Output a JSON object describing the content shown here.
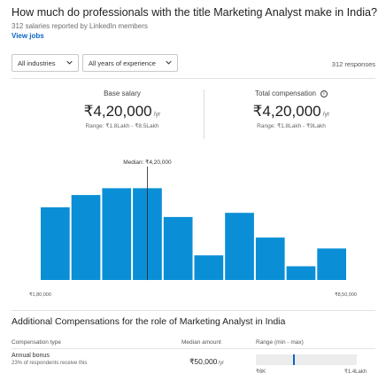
{
  "header": {
    "title": "How much do professionals with the title Marketing Analyst make in India?",
    "subtitle": "312 salaries reported by LinkedIn members",
    "view_jobs": "View jobs"
  },
  "filters": {
    "industries": "All industries",
    "experience": "All years of experience",
    "responses": "312 responses"
  },
  "salary": {
    "base": {
      "label": "Base salary",
      "value": "₹4,20,000",
      "per": "/yr",
      "range": "Range: ₹1.8Lakh - ₹8.5Lakh"
    },
    "total": {
      "label": "Total compensation",
      "value": "₹4,20,000",
      "per": "/yr",
      "range": "Range: ₹1.8Lakh - ₹9Lakh"
    }
  },
  "chart_data": {
    "type": "bar",
    "values": [
      5.3,
      6.2,
      6.7,
      6.7,
      4.6,
      1.8,
      4.9,
      3.1,
      1.0,
      2.3
    ],
    "ylim": [
      0,
      7.5
    ],
    "median_label": "Median: ₹4,20,000",
    "median_position": 3.5,
    "x_min_label": "₹1,80,000",
    "x_max_label": "₹8,50,000",
    "color": "#0a8fd6"
  },
  "additional": {
    "title": "Additional Compensations for the role of Marketing Analyst in India",
    "headers": {
      "type": "Compensation type",
      "median": "Median amount",
      "range": "Range (min - max)"
    },
    "rows": [
      {
        "type": "Annual bonus",
        "sub": "23% of respondents receive this",
        "median": "₹50,000",
        "per": "/yr",
        "range_min": "₹6K",
        "range_max": "₹1.4Lakh",
        "median_fraction": 0.37
      }
    ]
  },
  "icons": {
    "dropdown": "chevron-down-icon",
    "info": "info-icon"
  }
}
